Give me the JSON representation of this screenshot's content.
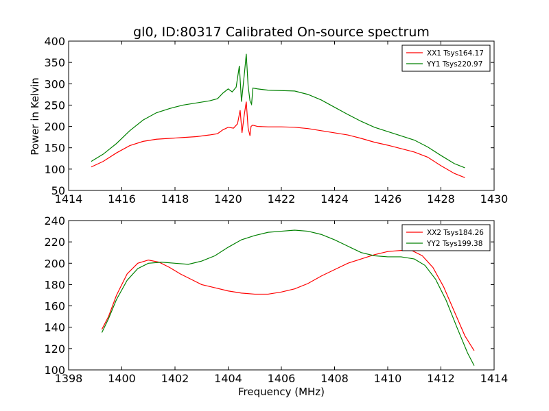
{
  "chart_data": [
    {
      "type": "line",
      "title": "gl0, ID:80317 Calibrated On-source spectrum",
      "xlabel": "",
      "ylabel": "Power in Kelvin",
      "xlim": [
        1414,
        1430
      ],
      "ylim": [
        50,
        400
      ],
      "xticks": [
        "1414",
        "1416",
        "1418",
        "1420",
        "1422",
        "1424",
        "1426",
        "1428",
        "1430"
      ],
      "yticks": [
        "50",
        "100",
        "150",
        "200",
        "250",
        "300",
        "350",
        "400"
      ],
      "legend_position": "top-right",
      "series": [
        {
          "name": "XX1 Tsys164.17",
          "color": "#ff0000",
          "points": [
            [
              1414.85,
              105
            ],
            [
              1415.3,
              118
            ],
            [
              1415.8,
              138
            ],
            [
              1416.3,
              155
            ],
            [
              1416.8,
              165
            ],
            [
              1417.3,
              170
            ],
            [
              1417.8,
              172
            ],
            [
              1418.3,
              174
            ],
            [
              1418.8,
              176
            ],
            [
              1419.3,
              180
            ],
            [
              1419.6,
              183
            ],
            [
              1419.8,
              192
            ],
            [
              1420.0,
              198
            ],
            [
              1420.2,
              196
            ],
            [
              1420.35,
              206
            ],
            [
              1420.45,
              238
            ],
            [
              1420.52,
              185
            ],
            [
              1420.6,
              225
            ],
            [
              1420.68,
              258
            ],
            [
              1420.75,
              196
            ],
            [
              1420.82,
              178
            ],
            [
              1420.86,
              200
            ],
            [
              1420.92,
              203
            ],
            [
              1421.1,
              200
            ],
            [
              1421.5,
              199
            ],
            [
              1422.0,
              199
            ],
            [
              1422.5,
              198
            ],
            [
              1423.0,
              195
            ],
            [
              1423.5,
              190
            ],
            [
              1424.0,
              185
            ],
            [
              1424.5,
              180
            ],
            [
              1425.0,
              172
            ],
            [
              1425.5,
              163
            ],
            [
              1426.0,
              156
            ],
            [
              1426.5,
              148
            ],
            [
              1427.0,
              140
            ],
            [
              1427.5,
              128
            ],
            [
              1428.0,
              108
            ],
            [
              1428.5,
              90
            ],
            [
              1428.9,
              80
            ]
          ]
        },
        {
          "name": "YY1 Tsys220.97",
          "color": "#008000",
          "points": [
            [
              1414.85,
              118
            ],
            [
              1415.3,
              135
            ],
            [
              1415.8,
              160
            ],
            [
              1416.3,
              190
            ],
            [
              1416.8,
              215
            ],
            [
              1417.3,
              232
            ],
            [
              1417.8,
              242
            ],
            [
              1418.3,
              250
            ],
            [
              1418.8,
              255
            ],
            [
              1419.3,
              260
            ],
            [
              1419.6,
              265
            ],
            [
              1419.8,
              278
            ],
            [
              1420.0,
              288
            ],
            [
              1420.15,
              281
            ],
            [
              1420.3,
              292
            ],
            [
              1420.42,
              342
            ],
            [
              1420.5,
              258
            ],
            [
              1420.62,
              330
            ],
            [
              1420.68,
              370
            ],
            [
              1420.75,
              295
            ],
            [
              1420.82,
              260
            ],
            [
              1420.88,
              252
            ],
            [
              1420.93,
              290
            ],
            [
              1421.1,
              288
            ],
            [
              1421.5,
              285
            ],
            [
              1422.0,
              284
            ],
            [
              1422.5,
              283
            ],
            [
              1423.0,
              275
            ],
            [
              1423.5,
              262
            ],
            [
              1424.0,
              245
            ],
            [
              1424.5,
              228
            ],
            [
              1425.0,
              212
            ],
            [
              1425.5,
              198
            ],
            [
              1426.0,
              188
            ],
            [
              1426.5,
              178
            ],
            [
              1427.0,
              168
            ],
            [
              1427.5,
              152
            ],
            [
              1428.0,
              132
            ],
            [
              1428.5,
              113
            ],
            [
              1428.9,
              103
            ]
          ]
        }
      ]
    },
    {
      "type": "line",
      "title": "",
      "xlabel": "Frequency (MHz)",
      "ylabel": "",
      "xlim": [
        1398,
        1414
      ],
      "ylim": [
        100,
        240
      ],
      "xticks": [
        "1398",
        "1400",
        "1402",
        "1404",
        "1406",
        "1408",
        "1410",
        "1412",
        "1414"
      ],
      "yticks": [
        "100",
        "120",
        "140",
        "160",
        "180",
        "200",
        "220",
        "240"
      ],
      "legend_position": "top-right",
      "series": [
        {
          "name": "XX2 Tsys184.26",
          "color": "#ff0000",
          "points": [
            [
              1399.25,
              138
            ],
            [
              1399.5,
              150
            ],
            [
              1399.8,
              170
            ],
            [
              1400.2,
              190
            ],
            [
              1400.6,
              200
            ],
            [
              1401.0,
              203
            ],
            [
              1401.4,
              201
            ],
            [
              1401.8,
              196
            ],
            [
              1402.2,
              190
            ],
            [
              1402.6,
              185
            ],
            [
              1403.0,
              180
            ],
            [
              1403.5,
              177
            ],
            [
              1404.0,
              174
            ],
            [
              1404.5,
              172
            ],
            [
              1405.0,
              171
            ],
            [
              1405.5,
              171
            ],
            [
              1406.0,
              173
            ],
            [
              1406.5,
              176
            ],
            [
              1407.0,
              181
            ],
            [
              1407.5,
              188
            ],
            [
              1408.0,
              194
            ],
            [
              1408.5,
              200
            ],
            [
              1409.0,
              204
            ],
            [
              1409.5,
              208
            ],
            [
              1410.0,
              211
            ],
            [
              1410.5,
              212
            ],
            [
              1410.9,
              212
            ],
            [
              1411.3,
              207
            ],
            [
              1411.7,
              196
            ],
            [
              1412.1,
              178
            ],
            [
              1412.5,
              155
            ],
            [
              1412.9,
              132
            ],
            [
              1413.25,
              118
            ]
          ]
        },
        {
          "name": "YY2 Tsys199.38",
          "color": "#008000",
          "points": [
            [
              1399.25,
              135
            ],
            [
              1399.5,
              148
            ],
            [
              1399.8,
              166
            ],
            [
              1400.2,
              184
            ],
            [
              1400.6,
              195
            ],
            [
              1401.0,
              200
            ],
            [
              1401.5,
              201
            ],
            [
              1402.0,
              200
            ],
            [
              1402.5,
              199
            ],
            [
              1403.0,
              202
            ],
            [
              1403.5,
              207
            ],
            [
              1404.0,
              215
            ],
            [
              1404.5,
              222
            ],
            [
              1405.0,
              226
            ],
            [
              1405.5,
              229
            ],
            [
              1406.0,
              230
            ],
            [
              1406.5,
              231
            ],
            [
              1407.0,
              230
            ],
            [
              1407.5,
              227
            ],
            [
              1408.0,
              222
            ],
            [
              1408.5,
              216
            ],
            [
              1409.0,
              210
            ],
            [
              1409.5,
              207
            ],
            [
              1410.0,
              206
            ],
            [
              1410.5,
              206
            ],
            [
              1411.0,
              204
            ],
            [
              1411.4,
              198
            ],
            [
              1411.8,
              185
            ],
            [
              1412.2,
              165
            ],
            [
              1412.6,
              140
            ],
            [
              1413.0,
              116
            ],
            [
              1413.25,
              104
            ]
          ]
        }
      ]
    }
  ]
}
